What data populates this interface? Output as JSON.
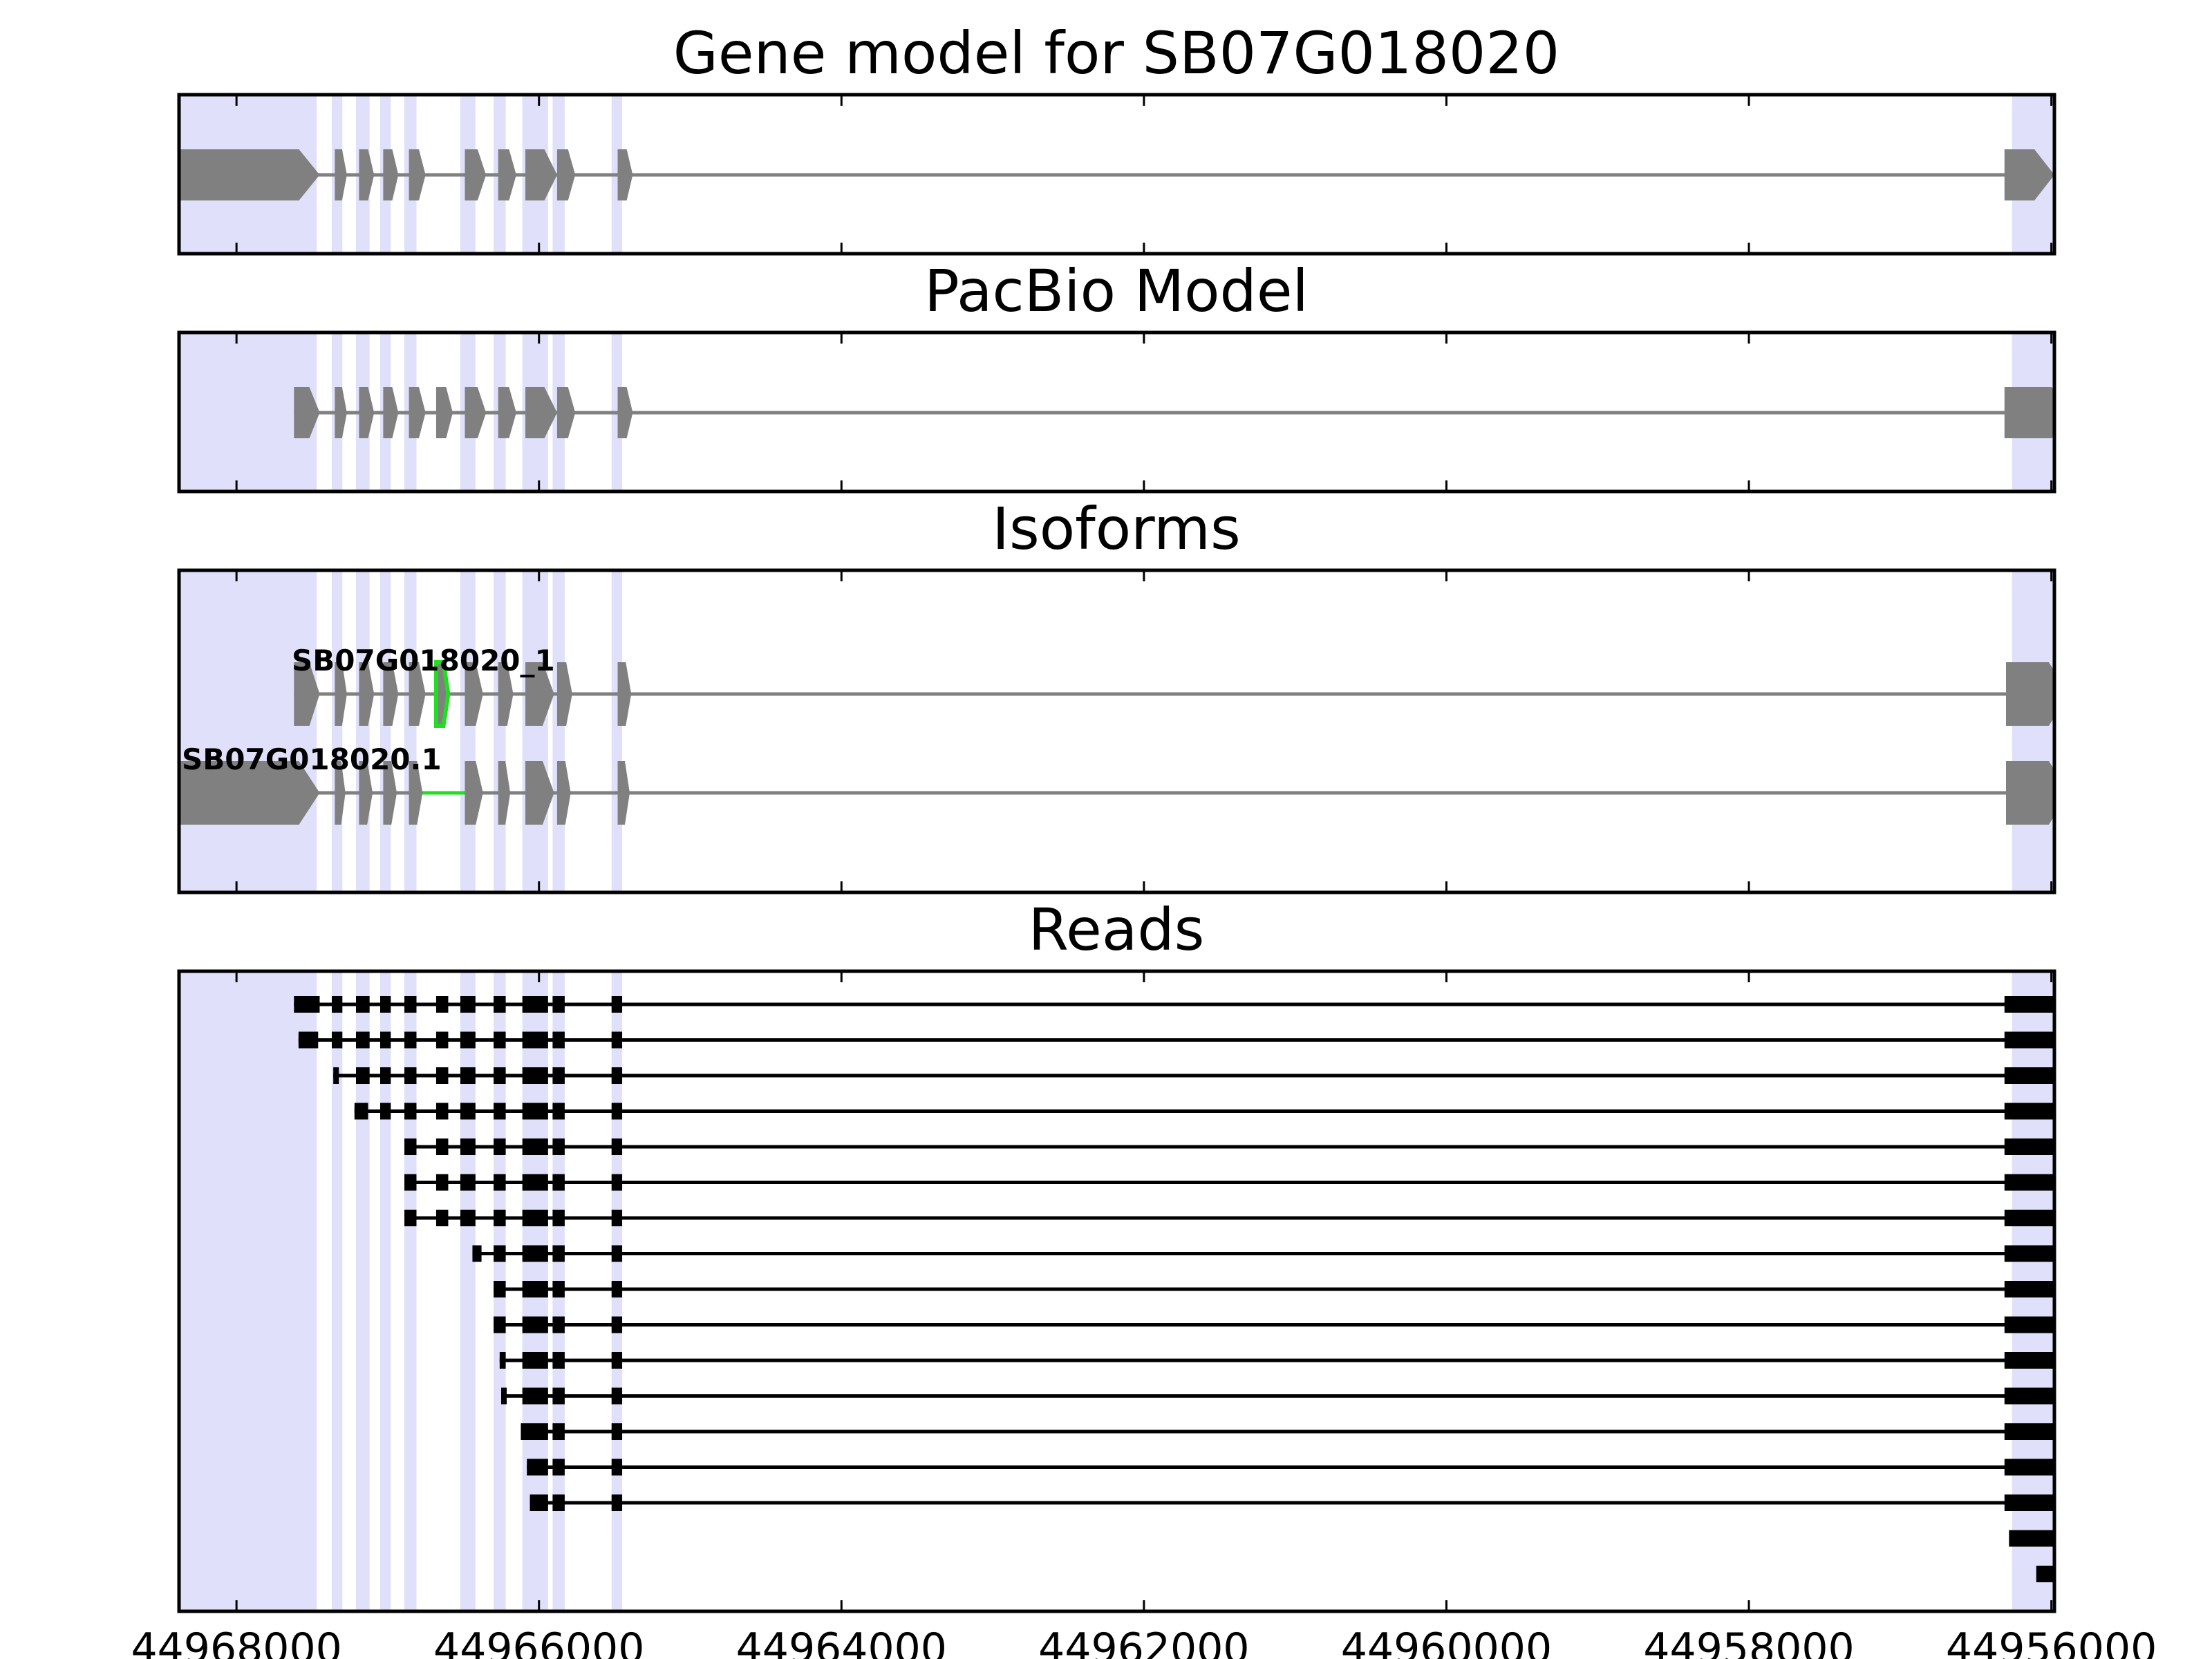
{
  "colors": {
    "exon_highlight": "#e0e0fa",
    "model_feature": "#808080",
    "read_feature": "#000000",
    "difference": "#22dd22",
    "frame": "#000000"
  },
  "genome_axis": {
    "reversed": true,
    "xlim": [
      44968380,
      44955980
    ],
    "ticks": [
      44968000,
      44966000,
      44964000,
      44962000,
      44960000,
      44958000,
      44956000
    ],
    "tick_labels": [
      "44968000",
      "44966000",
      "44964000",
      "44962000",
      "44960000",
      "44958000",
      "44956000"
    ]
  },
  "exon_regions": [
    [
      44968380,
      44967470
    ],
    [
      44967370,
      44967300
    ],
    [
      44967210,
      44967120
    ],
    [
      44967050,
      44966980
    ],
    [
      44966890,
      44966810
    ],
    [
      44966520,
      44966420
    ],
    [
      44966300,
      44966220
    ],
    [
      44966110,
      44965940
    ],
    [
      44965910,
      44965830
    ],
    [
      44965520,
      44965450
    ],
    [
      44956260,
      44955690
    ]
  ],
  "panels": {
    "gene_model": {
      "title": "Gene model for SB07G018020",
      "strand": "-",
      "exons": [
        [
          44968380,
          44967450
        ],
        [
          44967350,
          44967270
        ],
        [
          44967190,
          44967090
        ],
        [
          44967030,
          44966930
        ],
        [
          44966860,
          44966750
        ],
        [
          44966490,
          44966350
        ],
        [
          44966270,
          44966150
        ],
        [
          44966090,
          44965880
        ],
        [
          44965880,
          44965760
        ],
        [
          44965480,
          44965380
        ],
        [
          44956310,
          44955980
        ]
      ]
    },
    "pacbio_model": {
      "title": "PacBio Model",
      "strand": "-",
      "exons": [
        [
          44967620,
          44967450
        ],
        [
          44967350,
          44967270
        ],
        [
          44967190,
          44967090
        ],
        [
          44967030,
          44966930
        ],
        [
          44966860,
          44966750
        ],
        [
          44966680,
          44966570
        ],
        [
          44966490,
          44966350
        ],
        [
          44966270,
          44966150
        ],
        [
          44966090,
          44965880
        ],
        [
          44965880,
          44965760
        ],
        [
          44965480,
          44965380
        ],
        [
          44956310,
          44955860
        ]
      ]
    },
    "isoforms": {
      "title": "Isoforms",
      "tracks": [
        {
          "label": "SB07G018020_1",
          "exons": [
            [
              44967620,
              44967450
            ],
            [
              44967350,
              44967270
            ],
            [
              44967190,
              44967090
            ],
            [
              44967030,
              44966930
            ],
            [
              44966860,
              44966750
            ],
            [
              44966680,
              44966600
            ],
            [
              44966490,
              44966370
            ],
            [
              44966270,
              44966170
            ],
            [
              44966090,
              44965900
            ],
            [
              44965880,
              44965780
            ],
            [
              44965480,
              44965390
            ],
            [
              44956300,
              44955880
            ]
          ],
          "highlight_exon_index": 5
        },
        {
          "label": "SB07G018020.1",
          "exons": [
            [
              44968380,
              44967450
            ],
            [
              44967350,
              44967280
            ],
            [
              44967190,
              44967100
            ],
            [
              44967030,
              44966940
            ],
            [
              44966860,
              44966770
            ],
            [
              44966490,
              44966370
            ],
            [
              44966270,
              44966190
            ],
            [
              44966090,
              44965900
            ],
            [
              44965880,
              44965790
            ],
            [
              44965480,
              44965400
            ],
            [
              44956300,
              44955880
            ]
          ],
          "highlight_intron_index": 4
        }
      ]
    },
    "reads": {
      "title": "Reads",
      "tracks": [
        [
          [
            44967620,
            44967450
          ],
          [
            44967370,
            44967300
          ],
          [
            44967210,
            44967120
          ],
          [
            44967050,
            44966980
          ],
          [
            44966890,
            44966810
          ],
          [
            44966680,
            44966600
          ],
          [
            44966520,
            44966420
          ],
          [
            44966300,
            44966220
          ],
          [
            44966110,
            44965940
          ],
          [
            44965910,
            44965830
          ],
          [
            44965520,
            44965450
          ],
          [
            44956310,
            44955620
          ]
        ],
        [
          [
            44967590,
            44967460
          ],
          [
            44967370,
            44967300
          ],
          [
            44967210,
            44967120
          ],
          [
            44967050,
            44966980
          ],
          [
            44966890,
            44966810
          ],
          [
            44966680,
            44966600
          ],
          [
            44966520,
            44966420
          ],
          [
            44966300,
            44966220
          ],
          [
            44966110,
            44965940
          ],
          [
            44965910,
            44965830
          ],
          [
            44965520,
            44965450
          ],
          [
            44956310,
            44955760
          ]
        ],
        [
          [
            44967360,
            44967330
          ],
          [
            44967210,
            44967120
          ],
          [
            44967050,
            44966980
          ],
          [
            44966890,
            44966810
          ],
          [
            44966680,
            44966600
          ],
          [
            44966520,
            44966420
          ],
          [
            44966300,
            44966220
          ],
          [
            44966110,
            44965940
          ],
          [
            44965910,
            44965830
          ],
          [
            44965520,
            44965450
          ],
          [
            44956310,
            44955740
          ]
        ],
        [
          [
            44967220,
            44967130
          ],
          [
            44967050,
            44966980
          ],
          [
            44966890,
            44966810
          ],
          [
            44966680,
            44966600
          ],
          [
            44966520,
            44966420
          ],
          [
            44966300,
            44966220
          ],
          [
            44966110,
            44965940
          ],
          [
            44965910,
            44965830
          ],
          [
            44965520,
            44965450
          ],
          [
            44956310,
            44955800
          ]
        ],
        [
          [
            44966890,
            44966810
          ],
          [
            44966680,
            44966600
          ],
          [
            44966520,
            44966420
          ],
          [
            44966300,
            44966220
          ],
          [
            44966110,
            44965940
          ],
          [
            44965910,
            44965830
          ],
          [
            44965520,
            44965450
          ],
          [
            44956310,
            44955800
          ]
        ],
        [
          [
            44966890,
            44966810
          ],
          [
            44966680,
            44966600
          ],
          [
            44966520,
            44966420
          ],
          [
            44966300,
            44966220
          ],
          [
            44966110,
            44965940
          ],
          [
            44965910,
            44965830
          ],
          [
            44965520,
            44965450
          ],
          [
            44956310,
            44955860
          ]
        ],
        [
          [
            44966890,
            44966810
          ],
          [
            44966680,
            44966600
          ],
          [
            44966520,
            44966420
          ],
          [
            44966300,
            44966220
          ],
          [
            44966110,
            44965940
          ],
          [
            44965910,
            44965830
          ],
          [
            44965520,
            44965450
          ],
          [
            44956310,
            44955860
          ]
        ],
        [
          [
            44966440,
            44966380
          ],
          [
            44966300,
            44966220
          ],
          [
            44966110,
            44965940
          ],
          [
            44965910,
            44965830
          ],
          [
            44965520,
            44965450
          ],
          [
            44956310,
            44955710
          ]
        ],
        [
          [
            44966300,
            44966220
          ],
          [
            44966110,
            44965940
          ],
          [
            44965910,
            44965830
          ],
          [
            44965520,
            44965450
          ],
          [
            44956310,
            44955860
          ]
        ],
        [
          [
            44966300,
            44966220
          ],
          [
            44966110,
            44965940
          ],
          [
            44965910,
            44965830
          ],
          [
            44965520,
            44965450
          ],
          [
            44956310,
            44955620
          ]
        ],
        [
          [
            44966260,
            44966220
          ],
          [
            44966110,
            44965940
          ],
          [
            44965910,
            44965830
          ],
          [
            44965520,
            44965450
          ],
          [
            44956310,
            44955800
          ]
        ],
        [
          [
            44966250,
            44966220
          ],
          [
            44966110,
            44965940
          ],
          [
            44965910,
            44965830
          ],
          [
            44965520,
            44965450
          ],
          [
            44956310,
            44955750
          ]
        ],
        [
          [
            44966120,
            44965940
          ],
          [
            44965910,
            44965830
          ],
          [
            44965520,
            44965450
          ],
          [
            44956310,
            44955740
          ]
        ],
        [
          [
            44966080,
            44965940
          ],
          [
            44965910,
            44965830
          ],
          [
            44965520,
            44965450
          ],
          [
            44956310,
            44955800
          ]
        ],
        [
          [
            44966060,
            44965940
          ],
          [
            44965910,
            44965830
          ],
          [
            44965520,
            44965450
          ],
          [
            44956310,
            44955740
          ]
        ],
        [
          [
            44956280,
            44955580
          ]
        ],
        [
          [
            44956100,
            44955740
          ]
        ]
      ]
    }
  }
}
